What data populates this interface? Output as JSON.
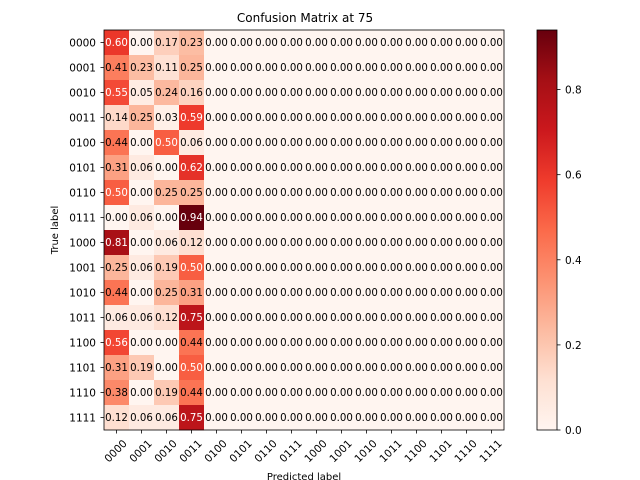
{
  "chart_data": {
    "type": "heatmap",
    "title": "Confusion Matrix at 75",
    "xlabel": "Predicted label",
    "ylabel": "True label",
    "x_categories": [
      "0000",
      "0001",
      "0010",
      "0011",
      "0100",
      "0101",
      "0110",
      "0111",
      "1000",
      "1001",
      "1010",
      "1011",
      "1100",
      "1101",
      "1110",
      "1111"
    ],
    "y_categories": [
      "0000",
      "0001",
      "0010",
      "0011",
      "0100",
      "0101",
      "0110",
      "0111",
      "1000",
      "1001",
      "1010",
      "1011",
      "1100",
      "1101",
      "1110",
      "1111"
    ],
    "values": [
      [
        0.6,
        0.0,
        0.17,
        0.23,
        0,
        0,
        0,
        0,
        0,
        0,
        0,
        0,
        0,
        0,
        0,
        0
      ],
      [
        0.41,
        0.23,
        0.11,
        0.25,
        0,
        0,
        0,
        0,
        0,
        0,
        0,
        0,
        0,
        0,
        0,
        0
      ],
      [
        0.55,
        0.05,
        0.24,
        0.16,
        0,
        0,
        0,
        0,
        0,
        0,
        0,
        0,
        0,
        0,
        0,
        0
      ],
      [
        0.14,
        0.25,
        0.03,
        0.59,
        0,
        0,
        0,
        0,
        0,
        0,
        0,
        0,
        0,
        0,
        0,
        0
      ],
      [
        0.44,
        0.0,
        0.5,
        0.06,
        0,
        0,
        0,
        0,
        0,
        0,
        0,
        0,
        0,
        0,
        0,
        0
      ],
      [
        0.31,
        0.06,
        0.0,
        0.62,
        0,
        0,
        0,
        0,
        0,
        0,
        0,
        0,
        0,
        0,
        0,
        0
      ],
      [
        0.5,
        0.0,
        0.25,
        0.25,
        0,
        0,
        0,
        0,
        0,
        0,
        0,
        0,
        0,
        0,
        0,
        0
      ],
      [
        0.0,
        0.06,
        0.0,
        0.94,
        0,
        0,
        0,
        0,
        0,
        0,
        0,
        0,
        0,
        0,
        0,
        0
      ],
      [
        0.81,
        0.0,
        0.06,
        0.12,
        0,
        0,
        0,
        0,
        0,
        0,
        0,
        0,
        0,
        0,
        0,
        0
      ],
      [
        0.25,
        0.06,
        0.19,
        0.5,
        0,
        0,
        0,
        0,
        0,
        0,
        0,
        0,
        0,
        0,
        0,
        0
      ],
      [
        0.44,
        0.0,
        0.25,
        0.31,
        0,
        0,
        0,
        0,
        0,
        0,
        0,
        0,
        0,
        0,
        0,
        0
      ],
      [
        0.06,
        0.06,
        0.12,
        0.75,
        0,
        0,
        0,
        0,
        0,
        0,
        0,
        0,
        0,
        0,
        0,
        0
      ],
      [
        0.56,
        0.0,
        0.0,
        0.44,
        0,
        0,
        0,
        0,
        0,
        0,
        0,
        0,
        0,
        0,
        0,
        0
      ],
      [
        0.31,
        0.19,
        0.0,
        0.5,
        0,
        0,
        0,
        0,
        0,
        0,
        0,
        0,
        0,
        0,
        0,
        0
      ],
      [
        0.38,
        0.0,
        0.19,
        0.44,
        0,
        0,
        0,
        0,
        0,
        0,
        0,
        0,
        0,
        0,
        0,
        0
      ],
      [
        0.12,
        0.06,
        0.06,
        0.75,
        0,
        0,
        0,
        0,
        0,
        0,
        0,
        0,
        0,
        0,
        0,
        0
      ]
    ],
    "value_format": "0.00",
    "colormap": "Reds",
    "colormap_stops": [
      "#fff5f0",
      "#fee0d2",
      "#fcbba1",
      "#fc9272",
      "#fb6a4a",
      "#ef3b2c",
      "#cb181d",
      "#a50f15",
      "#67000d"
    ],
    "color_range": [
      0,
      0.94
    ],
    "colorbar": {
      "ticks": [
        0.0,
        0.2,
        0.4,
        0.6,
        0.8
      ],
      "tick_labels": [
        "0.0",
        "0.2",
        "0.4",
        "0.6",
        "0.8"
      ],
      "placement": "right"
    },
    "grid": false
  }
}
